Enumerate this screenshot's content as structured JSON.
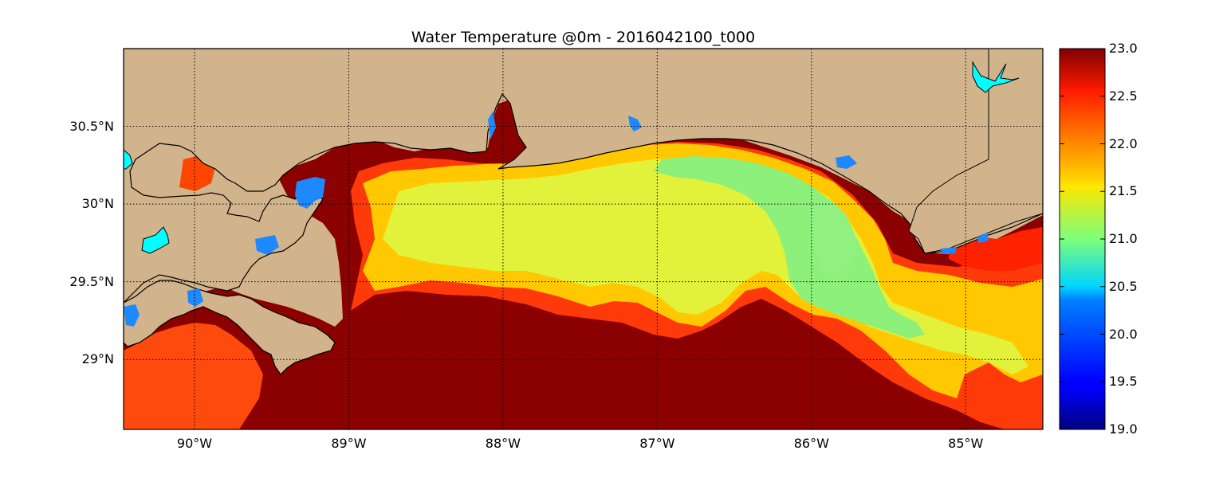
{
  "title": "Water Temperature @0m - 2016042100_t000",
  "map": {
    "projection": "lon-lat",
    "lon_range": [
      -90.46,
      -84.5
    ],
    "lat_range": [
      28.55,
      31.0
    ],
    "land_color": "#d2b48c",
    "lake_color": "#00ffff",
    "grid": "dotted"
  },
  "lat_ticks": [
    {
      "value": 30.5,
      "label": "30.5°N"
    },
    {
      "value": 30.0,
      "label": "30°N"
    },
    {
      "value": 29.5,
      "label": "29.5°N"
    },
    {
      "value": 29.0,
      "label": "29°N"
    }
  ],
  "lon_ticks": [
    {
      "value": -90,
      "label": "90°W"
    },
    {
      "value": -89,
      "label": "89°W"
    },
    {
      "value": -88,
      "label": "88°W"
    },
    {
      "value": -87,
      "label": "87°W"
    },
    {
      "value": -86,
      "label": "86°W"
    },
    {
      "value": -85,
      "label": "85°W"
    }
  ],
  "colorbar": {
    "colormap": "jet",
    "min": 19.0,
    "max": 23.0,
    "ticks": [
      {
        "value": 23.0,
        "label": "23.0"
      },
      {
        "value": 22.5,
        "label": "22.5"
      },
      {
        "value": 22.0,
        "label": "22.0"
      },
      {
        "value": 21.5,
        "label": "21.5"
      },
      {
        "value": 21.0,
        "label": "21.0"
      },
      {
        "value": 20.5,
        "label": "20.5"
      },
      {
        "value": 20.0,
        "label": "20.0"
      },
      {
        "value": 19.5,
        "label": "19.5"
      },
      {
        "value": 19.0,
        "label": "19.0"
      }
    ]
  }
}
